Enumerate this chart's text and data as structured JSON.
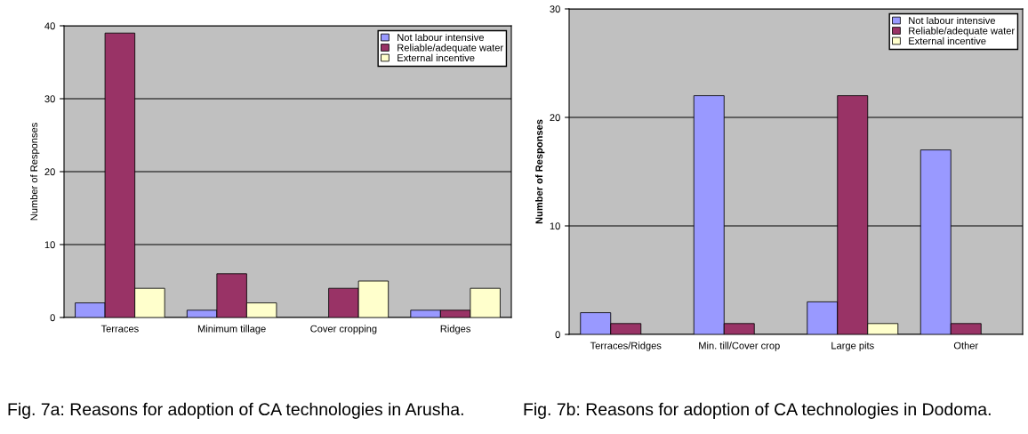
{
  "chart_data": [
    {
      "type": "bar",
      "categories": [
        "Terraces",
        "Minimum tillage",
        "Cover cropping",
        "Ridges"
      ],
      "ylabel": "Number of Responses",
      "ylim": [
        0,
        40
      ],
      "yticks": [
        0,
        10,
        20,
        30,
        40
      ],
      "grid": "y",
      "legend": "top right",
      "series": [
        {
          "name": "Not labour intensive",
          "color": "#9999ff",
          "values": [
            2,
            1,
            0,
            1
          ]
        },
        {
          "name": "Reliable/adequate water",
          "color": "#993366",
          "values": [
            39,
            6,
            4,
            1
          ]
        },
        {
          "name": "External incentive",
          "color": "#ffffcc",
          "values": [
            4,
            2,
            5,
            4
          ]
        }
      ],
      "annotations": [
        "Fig. 7a: Reasons for adoption of CA technologies in Arusha."
      ]
    },
    {
      "type": "bar",
      "categories": [
        "Terraces/Ridges",
        "Min. till/Cover crop",
        "Large pits",
        "Other"
      ],
      "ylabel": "Number of Responses",
      "ylim": [
        0,
        30
      ],
      "yticks": [
        0,
        10,
        20,
        30
      ],
      "grid": "y",
      "legend": "top right",
      "series": [
        {
          "name": "Not labour intensive",
          "color": "#9999ff",
          "values": [
            2,
            22,
            3,
            17
          ]
        },
        {
          "name": "Reliable/adequate water",
          "color": "#993366",
          "values": [
            1,
            1,
            22,
            1
          ]
        },
        {
          "name": "External incentive",
          "color": "#ffffcc",
          "values": [
            0,
            0,
            1,
            0
          ]
        }
      ],
      "annotations": [
        "Fig. 7b: Reasons for adoption of CA technologies in Dodoma."
      ]
    }
  ]
}
